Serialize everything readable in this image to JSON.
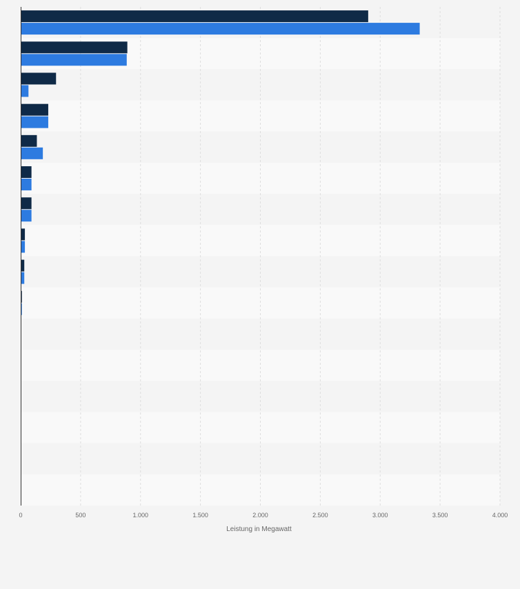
{
  "chart_data": {
    "type": "bar",
    "orientation": "horizontal",
    "categories": [
      "",
      "",
      "",
      "",
      "",
      "",
      "",
      "",
      "",
      "",
      "",
      "",
      "",
      "",
      "",
      ""
    ],
    "series": [
      {
        "color": "#0f2a47",
        "values": [
          2900,
          890,
          295,
          230,
          135,
          90,
          90,
          35,
          30,
          10,
          5,
          0,
          0,
          0,
          0,
          0
        ]
      },
      {
        "color": "#2d7be0",
        "values": [
          3330,
          885,
          65,
          230,
          185,
          90,
          90,
          35,
          30,
          10,
          5,
          0,
          0,
          0,
          0,
          0
        ]
      }
    ],
    "xlim": [
      0,
      4000
    ],
    "xticks": [
      0,
      500,
      1000,
      1500,
      2000,
      2500,
      3000,
      3500,
      4000
    ],
    "xtick_labels": [
      "0",
      "500",
      "1.000",
      "1.500",
      "2.000",
      "2.500",
      "3.000",
      "3.500",
      "4.000"
    ],
    "xlabel": "Leistung in Megawatt",
    "grid": true,
    "legend": "none"
  }
}
